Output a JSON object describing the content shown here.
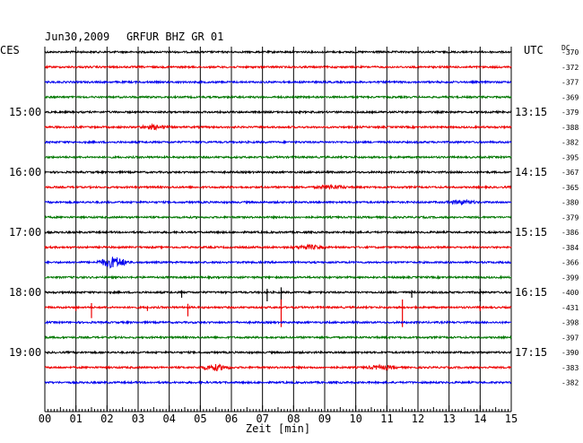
{
  "header": {
    "date": "Jun30,2009",
    "station": "GRFUR BHZ GR 01",
    "left_tz": "CES",
    "right_tz": "UTC",
    "dc_label": "DC"
  },
  "chart_data": {
    "type": "line",
    "title": "",
    "xlabel": "Zeit [min]",
    "xlim": [
      0,
      15
    ],
    "x_ticks": [
      "00",
      "01",
      "02",
      "03",
      "04",
      "05",
      "06",
      "07",
      "08",
      "09",
      "10",
      "11",
      "12",
      "13",
      "14",
      "15"
    ],
    "trace_colors": [
      "#000000",
      "#ee0000",
      "#0000ee",
      "#007700"
    ],
    "left_hour_labels": [
      {
        "row": 4,
        "label": "15:00"
      },
      {
        "row": 8,
        "label": "16:00"
      },
      {
        "row": 12,
        "label": "17:00"
      },
      {
        "row": 16,
        "label": "18:00"
      },
      {
        "row": 20,
        "label": "19:00"
      }
    ],
    "right_hour_labels": [
      {
        "row": 4,
        "label": "13:15"
      },
      {
        "row": 8,
        "label": "14:15"
      },
      {
        "row": 12,
        "label": "15:15"
      },
      {
        "row": 16,
        "label": "16:15"
      },
      {
        "row": 20,
        "label": "17:15"
      }
    ],
    "dc_offsets": [
      "-370",
      "-372",
      "-377",
      "-369",
      "-379",
      "-388",
      "-382",
      "-395",
      "-367",
      "-365",
      "-380",
      "-379",
      "-386",
      "-384",
      "-366",
      "-399",
      "-400",
      "-431",
      "-398",
      "-397",
      "-390",
      "-383",
      "-382"
    ],
    "events": [
      {
        "row": 14,
        "minute": 2.2,
        "kind": "burst",
        "amp": 6
      },
      {
        "row": 13,
        "minute": 8.5,
        "kind": "burst",
        "amp": 2
      },
      {
        "row": 9,
        "minute": 9.2,
        "kind": "burst",
        "amp": 2
      },
      {
        "row": 10,
        "minute": 13.4,
        "kind": "burst",
        "amp": 2
      },
      {
        "row": 5,
        "minute": 3.5,
        "kind": "burst",
        "amp": 2
      },
      {
        "row": 21,
        "minute": 5.5,
        "kind": "burst",
        "amp": 3
      },
      {
        "row": 21,
        "minute": 10.8,
        "kind": "burst",
        "amp": 2
      },
      {
        "row": 16,
        "minute": 4.4,
        "kind": "spike",
        "amp": 6
      },
      {
        "row": 16,
        "minute": 7.15,
        "kind": "spike",
        "amp": 10
      },
      {
        "row": 16,
        "minute": 7.6,
        "kind": "spike",
        "amp": 14
      },
      {
        "row": 16,
        "minute": 11.8,
        "kind": "spike",
        "amp": 6
      },
      {
        "row": 16,
        "minute": 14.0,
        "kind": "spike",
        "amp": 10
      },
      {
        "row": 17,
        "minute": 1.0,
        "kind": "spike",
        "amp": 4
      },
      {
        "row": 17,
        "minute": 1.5,
        "kind": "spike",
        "amp": 12
      },
      {
        "row": 17,
        "minute": 3.3,
        "kind": "spike",
        "amp": 4
      },
      {
        "row": 17,
        "minute": 4.6,
        "kind": "spike",
        "amp": 10
      },
      {
        "row": 17,
        "minute": 7.6,
        "kind": "spike",
        "amp": 22
      },
      {
        "row": 17,
        "minute": 11.5,
        "kind": "spike",
        "amp": 22
      },
      {
        "row": 17,
        "minute": 14.0,
        "kind": "spike",
        "amp": 4
      }
    ]
  }
}
